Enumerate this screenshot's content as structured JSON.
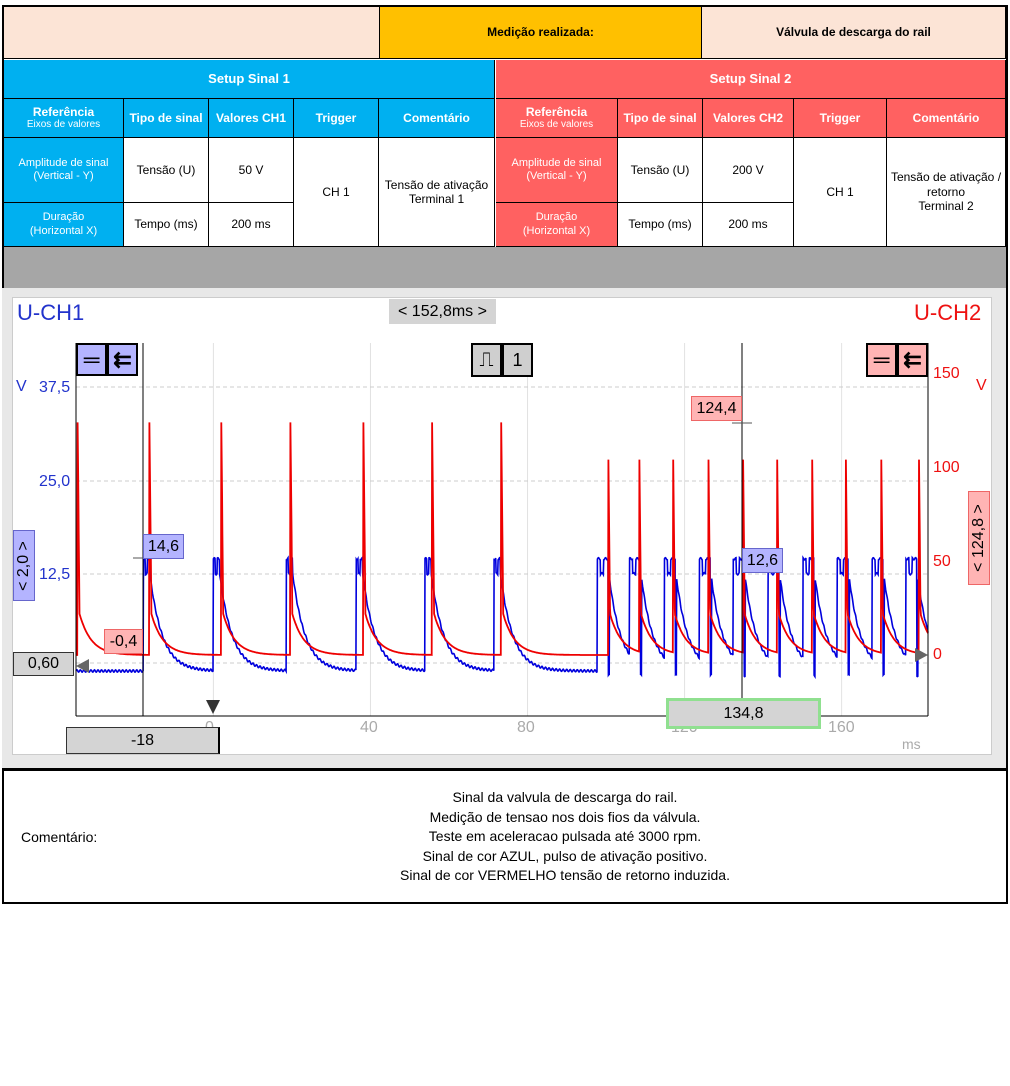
{
  "header": {
    "measurement_label": "Medição realizada:",
    "measurement_value": "Válvula de descarga do rail"
  },
  "setup1": {
    "title": "Setup Sinal 1",
    "cols": [
      "Tipo de sinal",
      "Valores CH1",
      "Trigger",
      "Comentário"
    ],
    "ref_title": "Referência",
    "ref_sub": "Eixos de valores",
    "row1_label": "Amplitude de sinal",
    "row1_sub": "(Vertical - Y)",
    "row2_label": "Duração",
    "row2_sub": "(Horizontal X)",
    "type1": "Tensão (U)",
    "value1": "50 V",
    "type2": "Tempo (ms)",
    "value2": "200 ms",
    "trigger": "CH 1",
    "comment1": "Tensão de ativação",
    "comment2": "Terminal 1"
  },
  "setup2": {
    "title": "Setup Sinal 2",
    "cols": [
      "Tipo de sinal",
      "Valores CH2",
      "Trigger",
      "Comentário"
    ],
    "ref_title": "Referência",
    "ref_sub": "Eixos de valores",
    "row1_label": "Amplitude de sinal",
    "row1_sub": "(Vertical - Y)",
    "row2_label": "Duração",
    "row2_sub": "(Horizontal X)",
    "type1": "Tensão (U)",
    "value1": "200 V",
    "type2": "Tempo (ms)",
    "value2": "200 ms",
    "trigger": "CH 1",
    "comment1": "Tensão de ativação /",
    "comment1b": "retorno",
    "comment2": "Terminal 2"
  },
  "scope": {
    "ch1_label": "U-CH1",
    "ch2_label": "U-CH2",
    "time_span": "< 152,8ms >",
    "trigger_channel": "1",
    "ch1_unit": "V",
    "ch2_unit": "V",
    "x_unit": "ms",
    "ch1_offset": "< 2,0 >",
    "ch2_offset": "< 124,8 >",
    "ch1_zero": "0,60",
    "cursor1_time": "-18",
    "cursor2_time": "134,8",
    "cursor1_ch1": "14,6",
    "cursor1_ch2": "-0,4",
    "cursor2_ch1": "12,6",
    "cursor2_ch2": "124,4"
  },
  "chart_data": {
    "type": "line",
    "x_ticks": [
      "0",
      "40",
      "80",
      "120",
      "160"
    ],
    "x_range": [
      -35,
      182
    ],
    "ch1_ticks": [
      "37,5",
      "25,0",
      "12,5"
    ],
    "ch1_range": [
      -6,
      43
    ],
    "ch2_ticks": [
      "150",
      "100",
      "50",
      "0"
    ],
    "ch2_range": [
      -28,
      168
    ],
    "series": [
      {
        "name": "U-CH1",
        "color": "#0000dd",
        "peak_v": 14.6,
        "base_v": -0.4,
        "pulse_starts_ms": [
          -17.8,
          0,
          18.6,
          36.4,
          53.9,
          71.5,
          97.7,
          105.9,
          114.8,
          123.7,
          132.3,
          141.2,
          150.1,
          158.8,
          167.7,
          176.3
        ]
      },
      {
        "name": "U-CH2",
        "color": "#ee0000",
        "peak_v": 124.4,
        "base_v": 0,
        "spike_times_ms": [
          -34.6,
          -16.3,
          2.0,
          19.6,
          38.2,
          55.7,
          73.3,
          100.5,
          108.4,
          117.0,
          126.0,
          134.8,
          143.5,
          152.4,
          161.0,
          170.0,
          179.6
        ]
      }
    ]
  },
  "comment": {
    "label": "Comentário:",
    "lines": [
      "Sinal da valvula de descarga do rail.",
      "Medição de tensao nos dois fios da válvula.",
      "Teste em  aceleracao pulsada até 3000 rpm.",
      "Sinal de cor AZUL, pulso de ativação positivo.",
      "Sinal de cor VERMELHO tensão de retorno induzida."
    ]
  }
}
